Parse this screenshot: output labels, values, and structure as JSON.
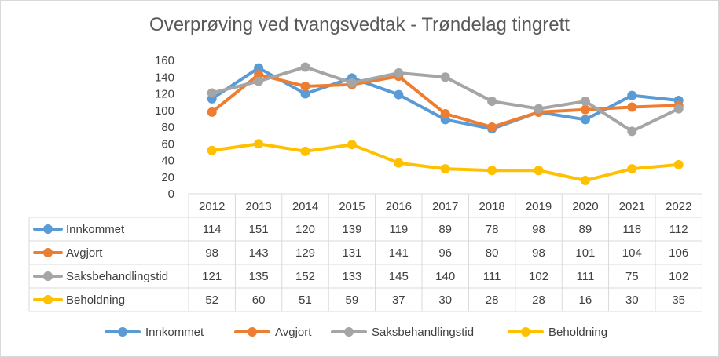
{
  "chart_data": {
    "type": "line",
    "title": "Overprøving ved tvangsvedtak - Trøndelag tingrett",
    "xlabel": "",
    "ylabel": "",
    "ylim": [
      0,
      160
    ],
    "yticks": [
      0,
      20,
      40,
      60,
      80,
      100,
      120,
      140,
      160
    ],
    "grid": false,
    "legend": "bottom",
    "data_table": true,
    "categories": [
      "2012",
      "2013",
      "2014",
      "2015",
      "2016",
      "2017",
      "2018",
      "2019",
      "2020",
      "2021",
      "2022"
    ],
    "series": [
      {
        "name": "Innkommet",
        "color": "#5B9BD5",
        "values": [
          114,
          151,
          120,
          139,
          119,
          89,
          78,
          98,
          89,
          118,
          112
        ]
      },
      {
        "name": "Avgjort",
        "color": "#ED7D31",
        "values": [
          98,
          143,
          129,
          131,
          141,
          96,
          80,
          98,
          101,
          104,
          106
        ]
      },
      {
        "name": "Saksbehandlingstid",
        "color": "#A5A5A5",
        "values": [
          121,
          135,
          152,
          133,
          145,
          140,
          111,
          102,
          111,
          75,
          102
        ]
      },
      {
        "name": "Beholdning",
        "color": "#FFC000",
        "values": [
          52,
          60,
          51,
          59,
          37,
          30,
          28,
          28,
          16,
          30,
          35
        ]
      }
    ]
  }
}
